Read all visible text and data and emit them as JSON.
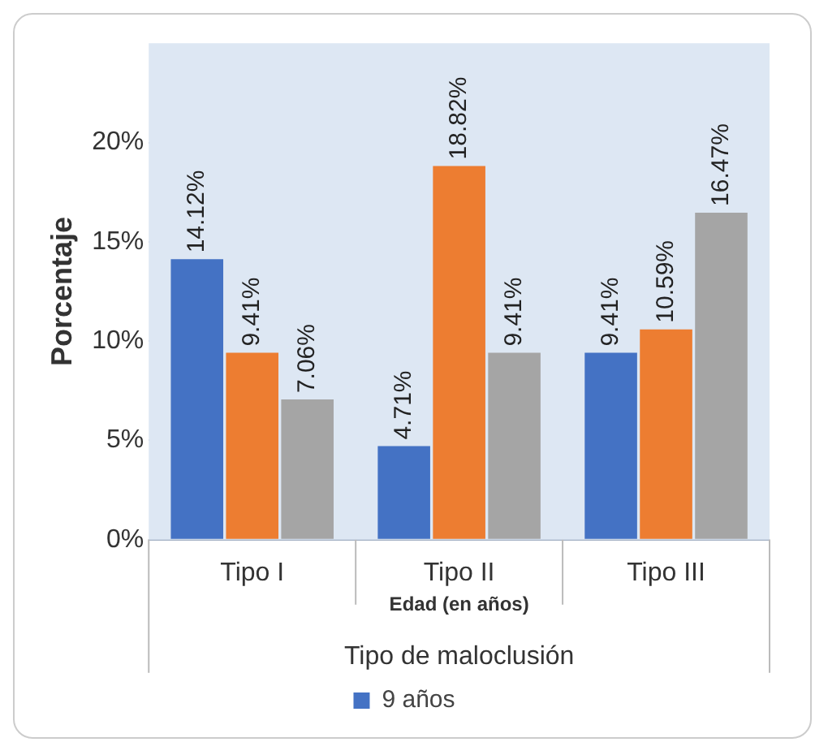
{
  "chart_data": {
    "type": "bar",
    "ylabel": "Porcentaje",
    "xlabel": "Edad (en años)",
    "annotations": [
      "Tipo de maloclusión"
    ],
    "categories": [
      "Tipo I",
      "Tipo II",
      "Tipo III"
    ],
    "series": [
      {
        "name": "9 años",
        "color": "#4472c4",
        "values": [
          14.12,
          4.71,
          9.41
        ]
      },
      {
        "color": "#ed7d31",
        "values": [
          9.41,
          18.82,
          10.59
        ]
      },
      {
        "color": "#a5a5a5",
        "values": [
          7.06,
          9.41,
          16.47
        ]
      }
    ],
    "ylim": [
      0,
      25
    ],
    "yticks": [
      {
        "value": 0,
        "label": "0%"
      },
      {
        "value": 5,
        "label": "5%"
      },
      {
        "value": 10,
        "label": "10%"
      },
      {
        "value": 15,
        "label": "15%"
      },
      {
        "value": 20,
        "label": "20%"
      }
    ],
    "value_labels": [
      [
        "14.12%",
        "4.71%",
        "9.41%"
      ],
      [
        "9.41%",
        "18.82%",
        "10.59%"
      ],
      [
        "7.06%",
        "9.41%",
        "16.47%"
      ]
    ],
    "grid": "y",
    "legend": "bottom"
  }
}
